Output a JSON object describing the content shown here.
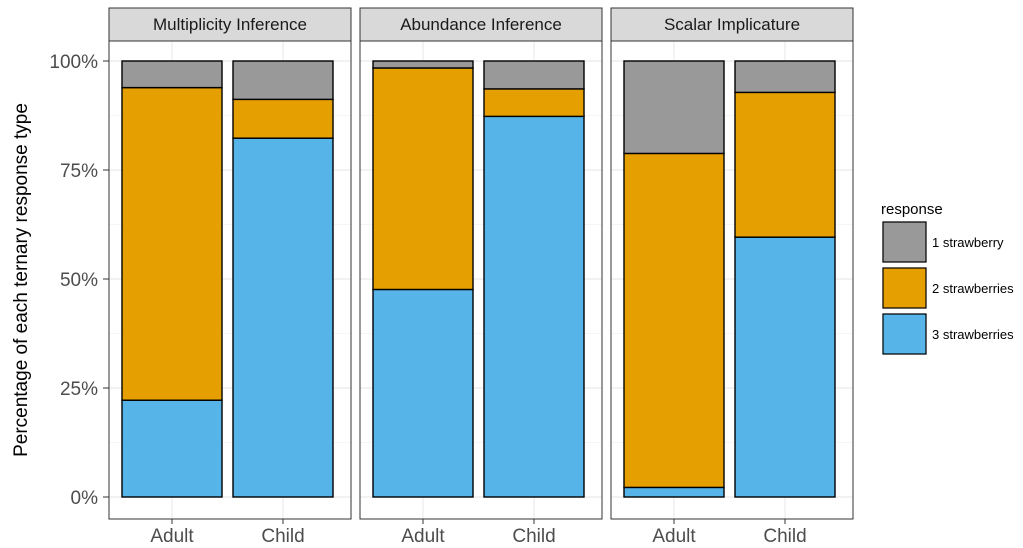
{
  "chart_data": {
    "type": "bar",
    "stacked": true,
    "ylabel": "Percentage of each ternary response type",
    "xlabel": "",
    "ylim": [
      0,
      100
    ],
    "yticks": [
      "0%",
      "25%",
      "50%",
      "75%",
      "100%"
    ],
    "ytick_values": [
      0,
      25,
      50,
      75,
      100
    ],
    "categories": [
      "Adult",
      "Child"
    ],
    "grid": true,
    "legend": {
      "title": "response",
      "position": "right",
      "entries": [
        "1 strawberry",
        "2 strawberries",
        "3 strawberries"
      ]
    },
    "colors": {
      "1 strawberry": "#999999",
      "2 strawberries": "#E69F00",
      "3 strawberries": "#56B4E9"
    },
    "facets": [
      {
        "title": "Multiplicity Inference",
        "series": [
          {
            "name": "3 strawberries",
            "values": [
              22.2,
              82.3
            ]
          },
          {
            "name": "2 strawberries",
            "values": [
              71.7,
              8.9
            ]
          },
          {
            "name": "1 strawberry",
            "values": [
              6.1,
              8.8
            ]
          }
        ]
      },
      {
        "title": "Abundance Inference",
        "series": [
          {
            "name": "3 strawberries",
            "values": [
              47.6,
              87.3
            ]
          },
          {
            "name": "2 strawberries",
            "values": [
              50.8,
              6.3
            ]
          },
          {
            "name": "1 strawberry",
            "values": [
              1.6,
              6.4
            ]
          }
        ]
      },
      {
        "title": "Scalar Implicature",
        "series": [
          {
            "name": "3 strawberries",
            "values": [
              2.2,
              59.6
            ]
          },
          {
            "name": "2 strawberries",
            "values": [
              76.6,
              33.2
            ]
          },
          {
            "name": "1 strawberry",
            "values": [
              21.2,
              7.2
            ]
          }
        ]
      }
    ]
  }
}
